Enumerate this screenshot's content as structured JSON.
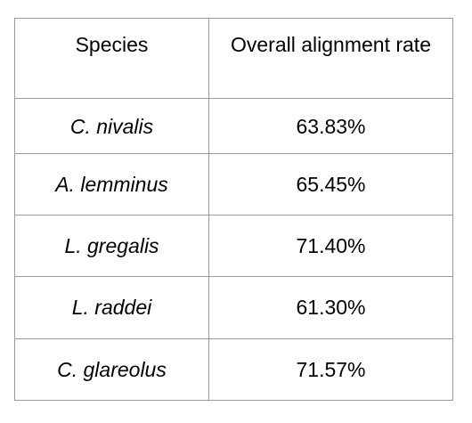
{
  "table": {
    "headers": [
      "Species",
      "Overall alignment rate"
    ],
    "rows": [
      {
        "species": "C. nivalis",
        "rate": "63.83%"
      },
      {
        "species": "A. lemminus",
        "rate": "65.45%"
      },
      {
        "species": "L. gregalis",
        "rate": "71.40%"
      },
      {
        "species": "L. raddei",
        "rate": "61.30%"
      },
      {
        "species": "C. glareolus",
        "rate": "71.57%"
      }
    ]
  }
}
